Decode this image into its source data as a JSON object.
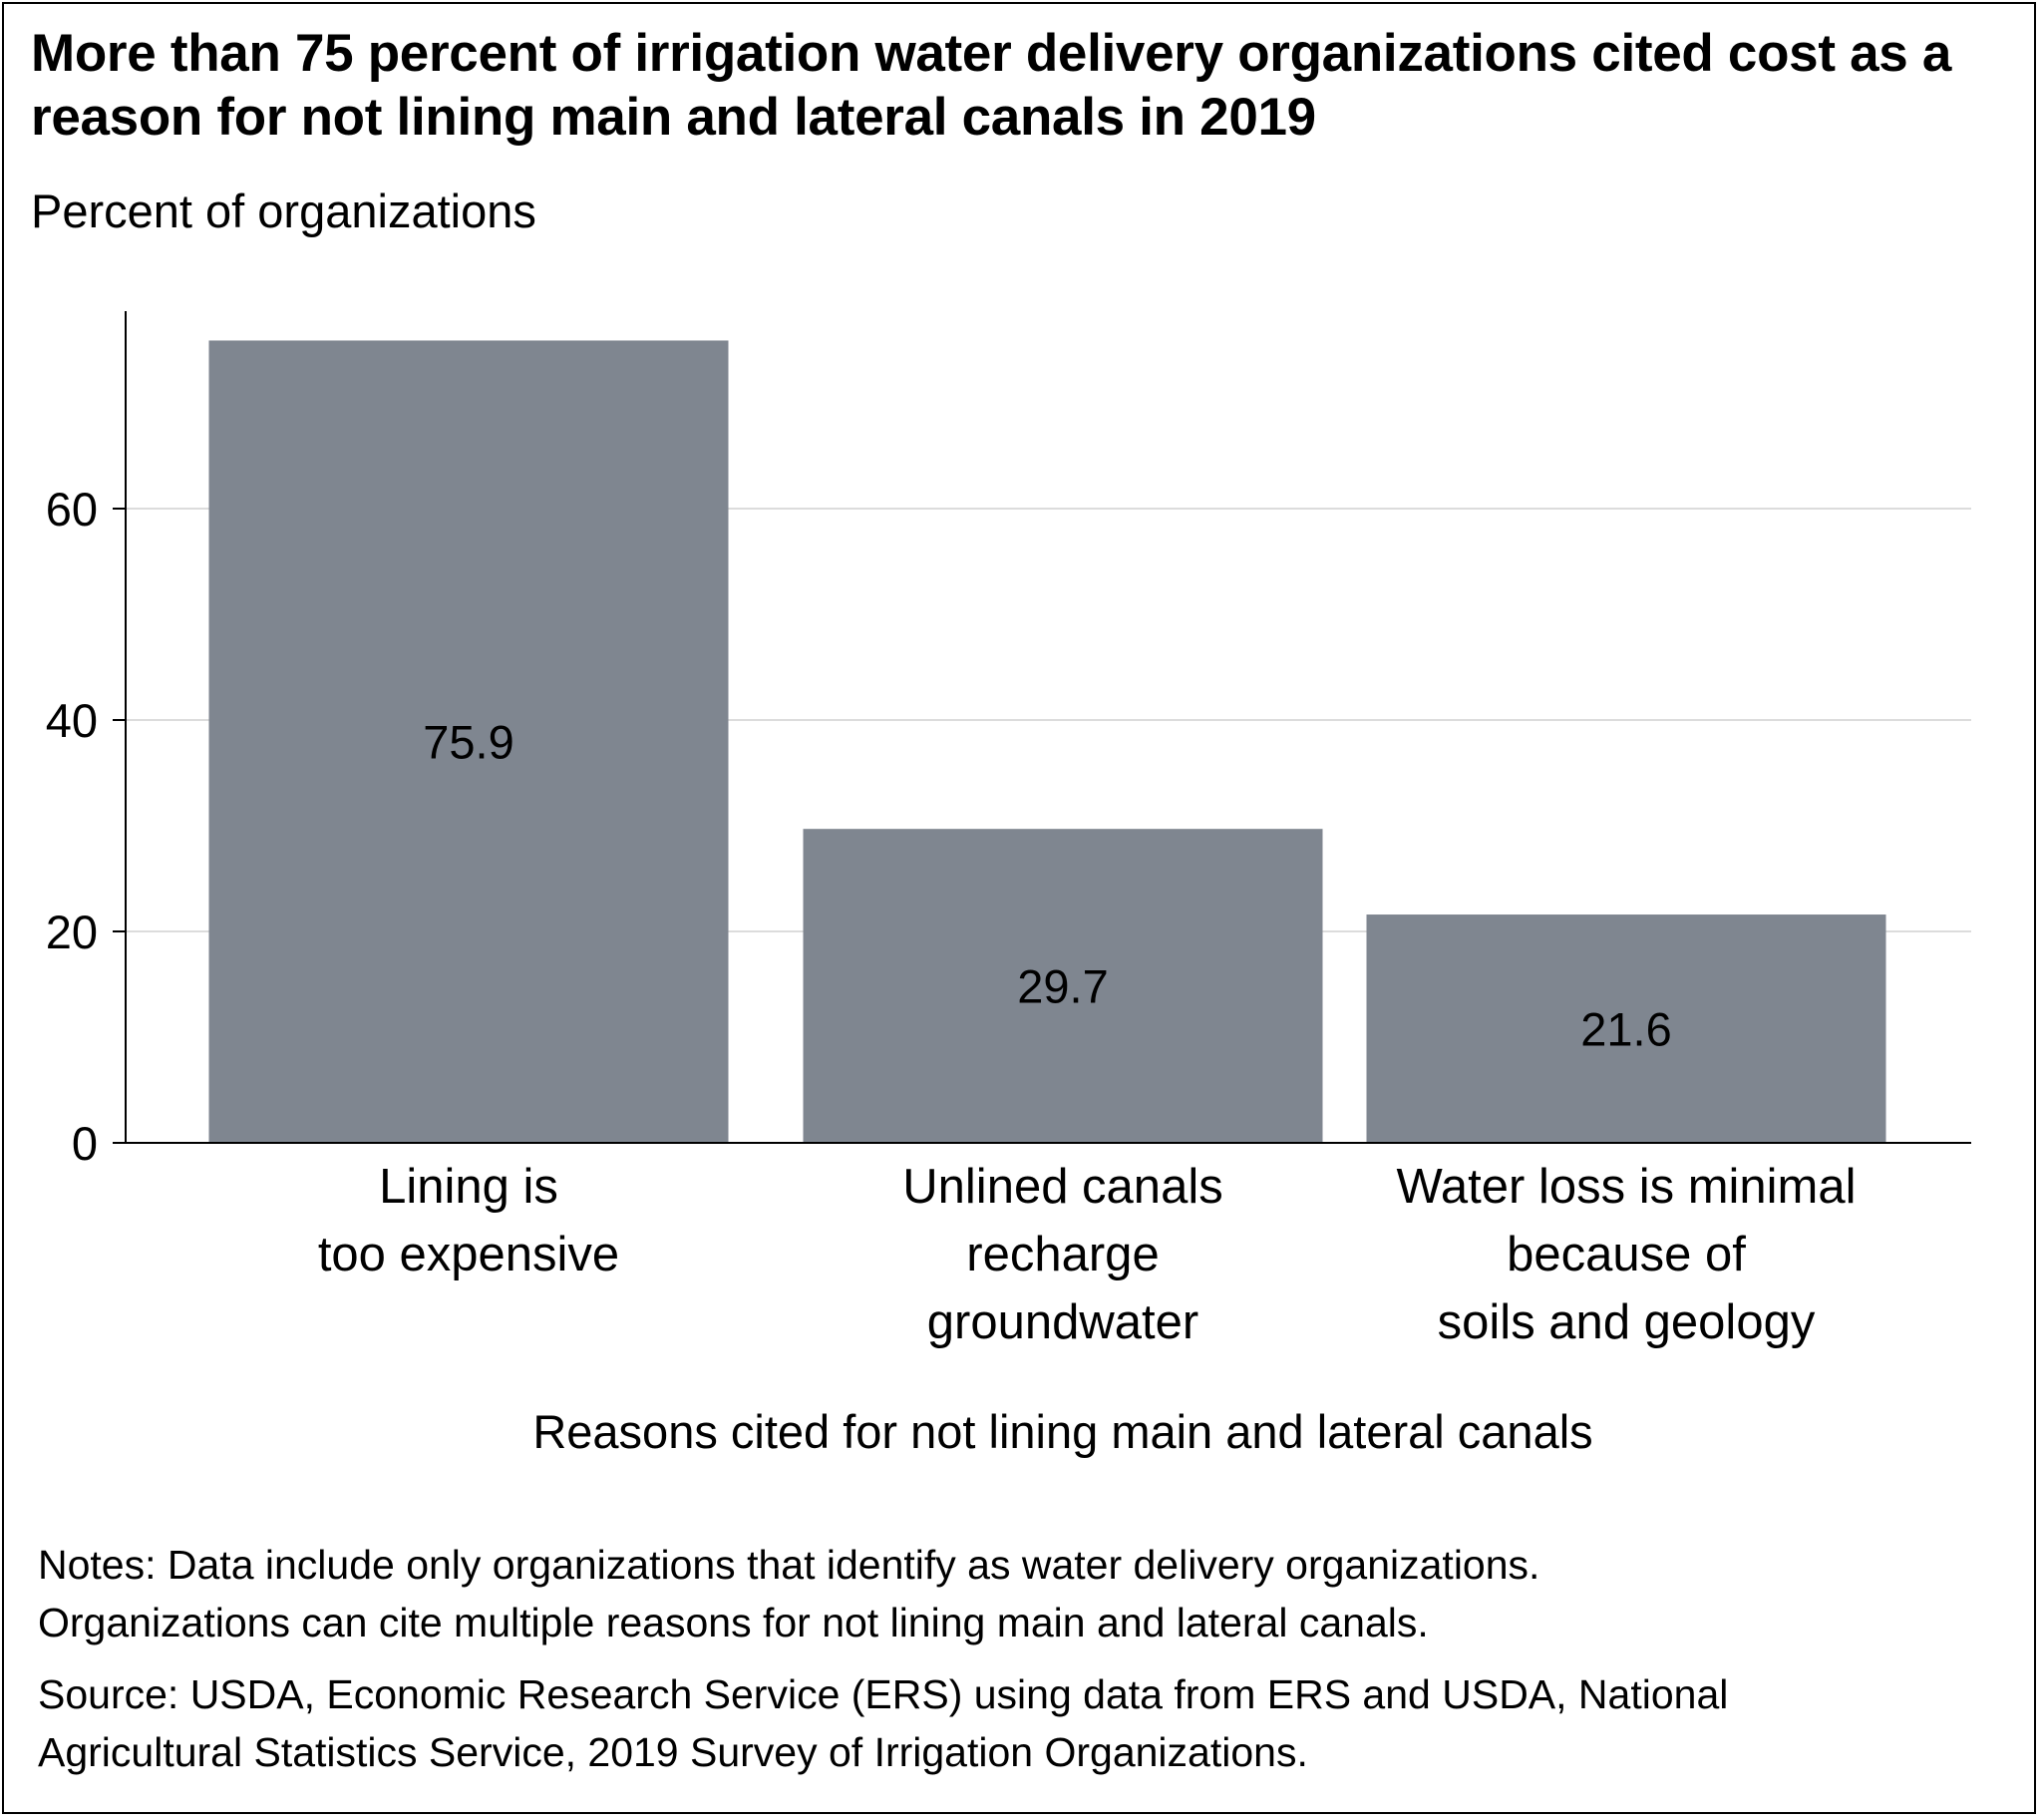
{
  "chart_data": {
    "type": "bar",
    "title": "More than 75 percent of irrigation water delivery organizations cited cost as a reason for not lining main and lateral canals in 2019",
    "ylabel": "Percent of organizations",
    "xlabel": "Reasons cited for not lining main and lateral canals",
    "categories": [
      [
        "Lining is",
        "too expensive"
      ],
      [
        "Unlined canals",
        "recharge",
        "groundwater"
      ],
      [
        "Water loss is minimal",
        "because of",
        "soils and geology"
      ]
    ],
    "values": [
      75.9,
      29.7,
      21.6
    ],
    "data_labels": [
      "75.9",
      "29.7",
      "21.6"
    ],
    "yticks": [
      0,
      20,
      40,
      60
    ],
    "ylim": [
      0,
      80
    ],
    "grid": true,
    "bar_color": "#7f8690",
    "grid_color": "#dcdcdc"
  },
  "notes": {
    "line1": "Notes: Data include only organizations that identify as water delivery organizations.",
    "line2": "Organizations can cite multiple reasons for not lining main and lateral canals."
  },
  "source": {
    "line1": "Source: USDA, Economic Research Service (ERS) using data from ERS and USDA, National",
    "line2": "Agricultural Statistics Service, 2019 Survey of Irrigation Organizations."
  }
}
